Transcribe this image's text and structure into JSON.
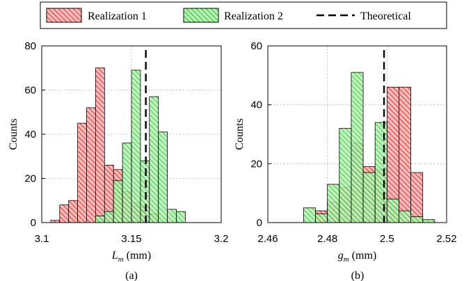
{
  "legend": {
    "items": [
      {
        "label": "Realization 1",
        "color": "#e03a3a",
        "style": "hatched-fill"
      },
      {
        "label": "Realization 2",
        "color": "#3cd63c",
        "style": "hatched-fill"
      },
      {
        "label": "Theoretical",
        "color": "#000000",
        "style": "dashed-line"
      }
    ]
  },
  "chart_data": [
    {
      "type": "bar",
      "caption": "(a)",
      "ylabel": "Counts",
      "xlabel_main": "L",
      "xlabel_sub": "m",
      "xlabel_unit": " (mm)",
      "xlim": [
        3.1,
        3.2
      ],
      "ylim": [
        0,
        80
      ],
      "xticks": [
        3.1,
        3.15,
        3.2
      ],
      "xtick_labels": [
        "3.1",
        "3.15",
        "3.2"
      ],
      "yticks": [
        0,
        20,
        40,
        60,
        80
      ],
      "ytick_labels": [
        "0",
        "20",
        "40",
        "60",
        "80"
      ],
      "grid": true,
      "theoretical": 3.158,
      "series": [
        {
          "name": "Realization 1",
          "color": "#e03a3a",
          "bins": [
            {
              "x0": 3.105,
              "x1": 3.11,
              "value": 1
            },
            {
              "x0": 3.11,
              "x1": 3.115,
              "value": 8
            },
            {
              "x0": 3.115,
              "x1": 3.12,
              "value": 10
            },
            {
              "x0": 3.12,
              "x1": 3.125,
              "value": 45
            },
            {
              "x0": 3.125,
              "x1": 3.13,
              "value": 52
            },
            {
              "x0": 3.13,
              "x1": 3.135,
              "value": 70
            },
            {
              "x0": 3.135,
              "x1": 3.14,
              "value": 26
            },
            {
              "x0": 3.14,
              "x1": 3.145,
              "value": 24
            },
            {
              "x0": 3.145,
              "x1": 3.15,
              "value": 14
            },
            {
              "x0": 3.15,
              "x1": 3.155,
              "value": 9
            },
            {
              "x0": 3.155,
              "x1": 3.16,
              "value": 7
            },
            {
              "x0": 3.16,
              "x1": 3.165,
              "value": 4
            }
          ]
        },
        {
          "name": "Realization 2",
          "color": "#3cd63c",
          "bins": [
            {
              "x0": 3.13,
              "x1": 3.135,
              "value": 3
            },
            {
              "x0": 3.135,
              "x1": 3.14,
              "value": 5
            },
            {
              "x0": 3.14,
              "x1": 3.145,
              "value": 19
            },
            {
              "x0": 3.145,
              "x1": 3.15,
              "value": 36
            },
            {
              "x0": 3.15,
              "x1": 3.155,
              "value": 69
            },
            {
              "x0": 3.155,
              "x1": 3.16,
              "value": 28
            },
            {
              "x0": 3.16,
              "x1": 3.165,
              "value": 57
            },
            {
              "x0": 3.165,
              "x1": 3.17,
              "value": 41
            },
            {
              "x0": 3.17,
              "x1": 3.175,
              "value": 6
            },
            {
              "x0": 3.175,
              "x1": 3.18,
              "value": 5
            }
          ]
        }
      ]
    },
    {
      "type": "bar",
      "caption": "(b)",
      "ylabel": "Counts",
      "xlabel_main": "g",
      "xlabel_sub": "m",
      "xlabel_unit": " (mm)",
      "xlim": [
        2.46,
        2.52
      ],
      "ylim": [
        0,
        60
      ],
      "xticks": [
        2.46,
        2.48,
        2.5,
        2.52
      ],
      "xtick_labels": [
        "2.46",
        "2.48",
        "2.5",
        "2.52"
      ],
      "yticks": [
        0,
        20,
        40,
        60
      ],
      "ytick_labels": [
        "0",
        "20",
        "40",
        "60"
      ],
      "grid": true,
      "theoretical": 2.499,
      "series": [
        {
          "name": "Realization 1",
          "color": "#e03a3a",
          "bins": [
            {
              "x0": 2.476,
              "x1": 2.48,
              "value": 4
            },
            {
              "x0": 2.48,
              "x1": 2.484,
              "value": 7
            },
            {
              "x0": 2.484,
              "x1": 2.488,
              "value": 12
            },
            {
              "x0": 2.488,
              "x1": 2.492,
              "value": 27
            },
            {
              "x0": 2.492,
              "x1": 2.496,
              "value": 19
            },
            {
              "x0": 2.496,
              "x1": 2.5,
              "value": 18
            },
            {
              "x0": 2.5,
              "x1": 2.504,
              "value": 46
            },
            {
              "x0": 2.504,
              "x1": 2.508,
              "value": 46
            },
            {
              "x0": 2.508,
              "x1": 2.512,
              "value": 17
            }
          ]
        },
        {
          "name": "Realization 2",
          "color": "#3cd63c",
          "bins": [
            {
              "x0": 2.472,
              "x1": 2.476,
              "value": 5
            },
            {
              "x0": 2.476,
              "x1": 2.48,
              "value": 3
            },
            {
              "x0": 2.48,
              "x1": 2.484,
              "value": 13
            },
            {
              "x0": 2.484,
              "x1": 2.488,
              "value": 32
            },
            {
              "x0": 2.488,
              "x1": 2.492,
              "value": 51
            },
            {
              "x0": 2.492,
              "x1": 2.496,
              "value": 17
            },
            {
              "x0": 2.496,
              "x1": 2.5,
              "value": 34
            },
            {
              "x0": 2.5,
              "x1": 2.504,
              "value": 8
            },
            {
              "x0": 2.504,
              "x1": 2.508,
              "value": 4
            },
            {
              "x0": 2.508,
              "x1": 2.512,
              "value": 2
            },
            {
              "x0": 2.512,
              "x1": 2.516,
              "value": 1
            }
          ]
        }
      ]
    }
  ]
}
